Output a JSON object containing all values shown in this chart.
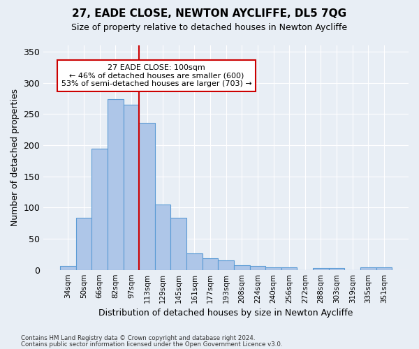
{
  "title1": "27, EADE CLOSE, NEWTON AYCLIFFE, DL5 7QG",
  "title2": "Size of property relative to detached houses in Newton Aycliffe",
  "xlabel": "Distribution of detached houses by size in Newton Aycliffe",
  "ylabel": "Number of detached properties",
  "footer1": "Contains HM Land Registry data © Crown copyright and database right 2024.",
  "footer2": "Contains public sector information licensed under the Open Government Licence v3.0.",
  "categories": [
    "34sqm",
    "50sqm",
    "66sqm",
    "82sqm",
    "97sqm",
    "113sqm",
    "129sqm",
    "145sqm",
    "161sqm",
    "177sqm",
    "193sqm",
    "208sqm",
    "224sqm",
    "240sqm",
    "256sqm",
    "272sqm",
    "288sqm",
    "303sqm",
    "319sqm",
    "335sqm",
    "351sqm"
  ],
  "values": [
    6,
    84,
    194,
    274,
    265,
    236,
    105,
    84,
    26,
    19,
    15,
    8,
    6,
    4,
    4,
    0,
    3,
    3,
    0,
    4,
    4
  ],
  "bar_color": "#aec6e8",
  "bar_edge_color": "#5b9bd5",
  "vline_x": 4.5,
  "vline_color": "#cc0000",
  "annotation_line1": "27 EADE CLOSE: 100sqm",
  "annotation_line2": "← 46% of detached houses are smaller (600)",
  "annotation_line3": "53% of semi-detached houses are larger (703) →",
  "annotation_box_color": "#ffffff",
  "annotation_box_edge": "#cc0000",
  "bg_color": "#e8eef5",
  "ylim": [
    0,
    360
  ],
  "yticks": [
    0,
    50,
    100,
    150,
    200,
    250,
    300,
    350
  ]
}
